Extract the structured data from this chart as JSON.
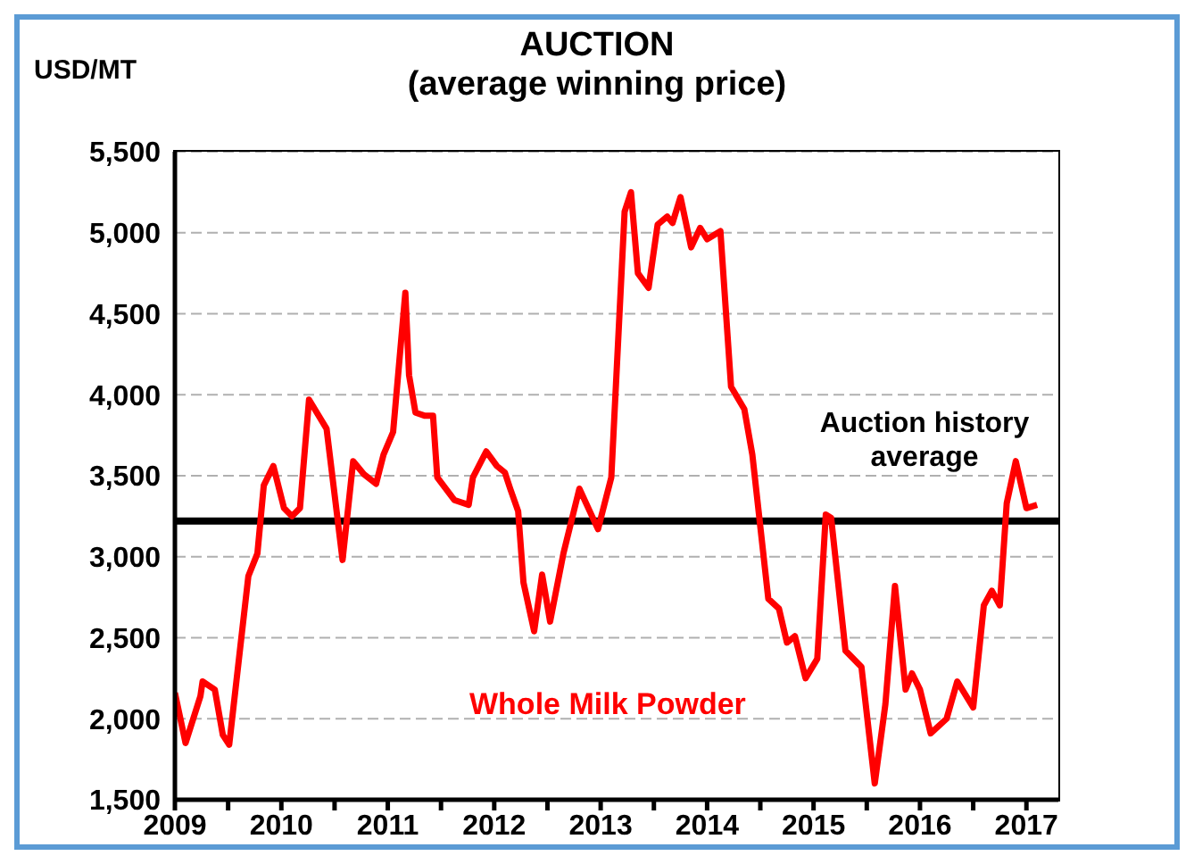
{
  "chart_data": {
    "type": "line",
    "title": "AUCTION",
    "subtitle": "(average winning price)",
    "ylabel": "USD/MT",
    "x": [
      2009.0,
      2009.1,
      2009.24,
      2009.26,
      2009.375,
      2009.45,
      2009.51,
      2009.69,
      2009.775,
      2009.835,
      2009.925,
      2010.025,
      2010.1,
      2010.175,
      2010.26,
      2010.425,
      2010.575,
      2010.675,
      2010.775,
      2010.89,
      2010.96,
      2011.05,
      2011.165,
      2011.2,
      2011.26,
      2011.35,
      2011.425,
      2011.465,
      2011.625,
      2011.76,
      2011.8,
      2011.925,
      2012.025,
      2012.1,
      2012.15,
      2012.225,
      2012.275,
      2012.375,
      2012.45,
      2012.525,
      2012.65,
      2012.8,
      2012.975,
      2013.1,
      2013.225,
      2013.285,
      2013.35,
      2013.45,
      2013.535,
      2013.625,
      2013.675,
      2013.75,
      2013.85,
      2013.935,
      2014.0,
      2014.125,
      2014.225,
      2014.35,
      2014.425,
      2014.575,
      2014.675,
      2014.75,
      2014.825,
      2014.925,
      2015.035,
      2015.115,
      2015.165,
      2015.3,
      2015.45,
      2015.575,
      2015.675,
      2015.765,
      2015.865,
      2015.925,
      2016.0,
      2016.1,
      2016.25,
      2016.35,
      2016.5,
      2016.6,
      2016.675,
      2016.75,
      2016.815,
      2016.9,
      2017.0,
      2017.1
    ],
    "series": [
      {
        "name": "Whole Milk Powder",
        "color": "#ff0000",
        "values": [
          2160,
          1850,
          2140,
          2230,
          2180,
          1900,
          1840,
          2880,
          3020,
          3440,
          3560,
          3300,
          3250,
          3300,
          3970,
          3790,
          2980,
          3590,
          3510,
          3450,
          3630,
          3770,
          4630,
          4120,
          3890,
          3870,
          3870,
          3490,
          3350,
          3320,
          3490,
          3650,
          3560,
          3520,
          3420,
          3280,
          2840,
          2540,
          2890,
          2600,
          3020,
          3420,
          3170,
          3490,
          5130,
          5250,
          4750,
          4660,
          5050,
          5100,
          5060,
          5220,
          4910,
          5030,
          4960,
          5010,
          4050,
          3910,
          3630,
          2740,
          2680,
          2470,
          2510,
          2250,
          2370,
          3260,
          3240,
          2420,
          2320,
          1600,
          2090,
          2820,
          2180,
          2280,
          2180,
          1910,
          2000,
          2230,
          2070,
          2700,
          2790,
          2700,
          3330,
          3590,
          3300,
          3320
        ]
      }
    ],
    "xlim": [
      2009,
      2017.3
    ],
    "xticks": [
      2009,
      {
        "value": 2009.5,
        "label": null
      },
      2010,
      {
        "value": 2010.5,
        "label": null
      },
      2011,
      {
        "value": 2011.5,
        "label": null
      },
      2012,
      {
        "value": 2012.5,
        "label": null
      },
      2013,
      {
        "value": 2013.5,
        "label": null
      },
      2014,
      {
        "value": 2014.5,
        "label": null
      },
      2015,
      {
        "value": 2015.5,
        "label": null
      },
      2016,
      {
        "value": 2016.5,
        "label": null
      },
      2017
    ],
    "ylim": [
      1500,
      5500
    ],
    "yticks": [
      {
        "value": 1500,
        "label": "1,500"
      },
      {
        "value": 2000,
        "label": "2,000"
      },
      {
        "value": 2500,
        "label": "2,500"
      },
      {
        "value": 3000,
        "label": "3,000"
      },
      {
        "value": 3500,
        "label": "3,500"
      },
      {
        "value": 4000,
        "label": "4,000"
      },
      {
        "value": 4500,
        "label": "4,500"
      },
      {
        "value": 5000,
        "label": "5,000"
      },
      {
        "value": 5500,
        "label": "5,500"
      }
    ],
    "grid": "y",
    "marker": "none",
    "line_style": "solid",
    "ref_lines": [
      {
        "axis": "y",
        "value": 3220,
        "label": "Auction history average",
        "color": "#000000"
      }
    ]
  }
}
